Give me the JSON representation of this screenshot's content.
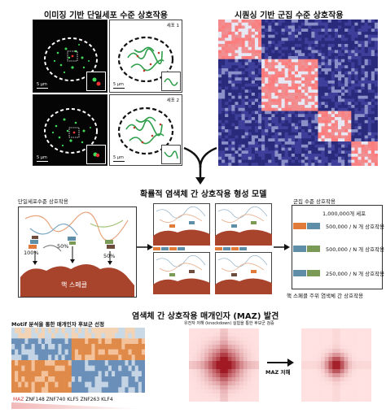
{
  "top": {
    "imaging_title": "이미징 기반 단일세포 수준 상호작용",
    "seq_title": "시퀀싱 기반 군집 수준 상호작용",
    "cell1": "세포 1",
    "cell2": "세포 2",
    "scale": "5 μm"
  },
  "middle": {
    "title": "확률적 염색체 간 상호작용 형성 모델",
    "single_cell_label": "단일세포수준 상호작용",
    "pct_100": "100%",
    "pct_50_a": "50%",
    "pct_50_b": "50%",
    "speckle": "핵 스페클",
    "population_label": "군집 수준 상호작용",
    "million_cells": "1,000,000개 세포",
    "row1": "500,000 / N 개 상호작용",
    "row2": "500,000 / N 개 상호작용",
    "row3": "250,000 / N 개 상호작용",
    "footer": "핵 스페클 주위 염색체 간 상호작용"
  },
  "bottom": {
    "title": "염색체 간 상호작용 매개인자 (MAZ) 발견",
    "motif_label": "Motif 분석을 통한 매개인자 후보군 선정",
    "knockdown_label": "유전자 저해 (knockdown) 실험을 통한 후보군 검증",
    "maz_knockdown": "MAZ 저해",
    "genes": [
      "MAZ",
      "ZNF148",
      "ZNF740",
      "KLF5",
      "ZNF263",
      "KLF4"
    ]
  },
  "colors": {
    "speckle": "#a8432c",
    "orange": "#e07b3a",
    "teal": "#5f8fa8",
    "green": "#7a9a55",
    "red_pair": "#c0392b"
  }
}
